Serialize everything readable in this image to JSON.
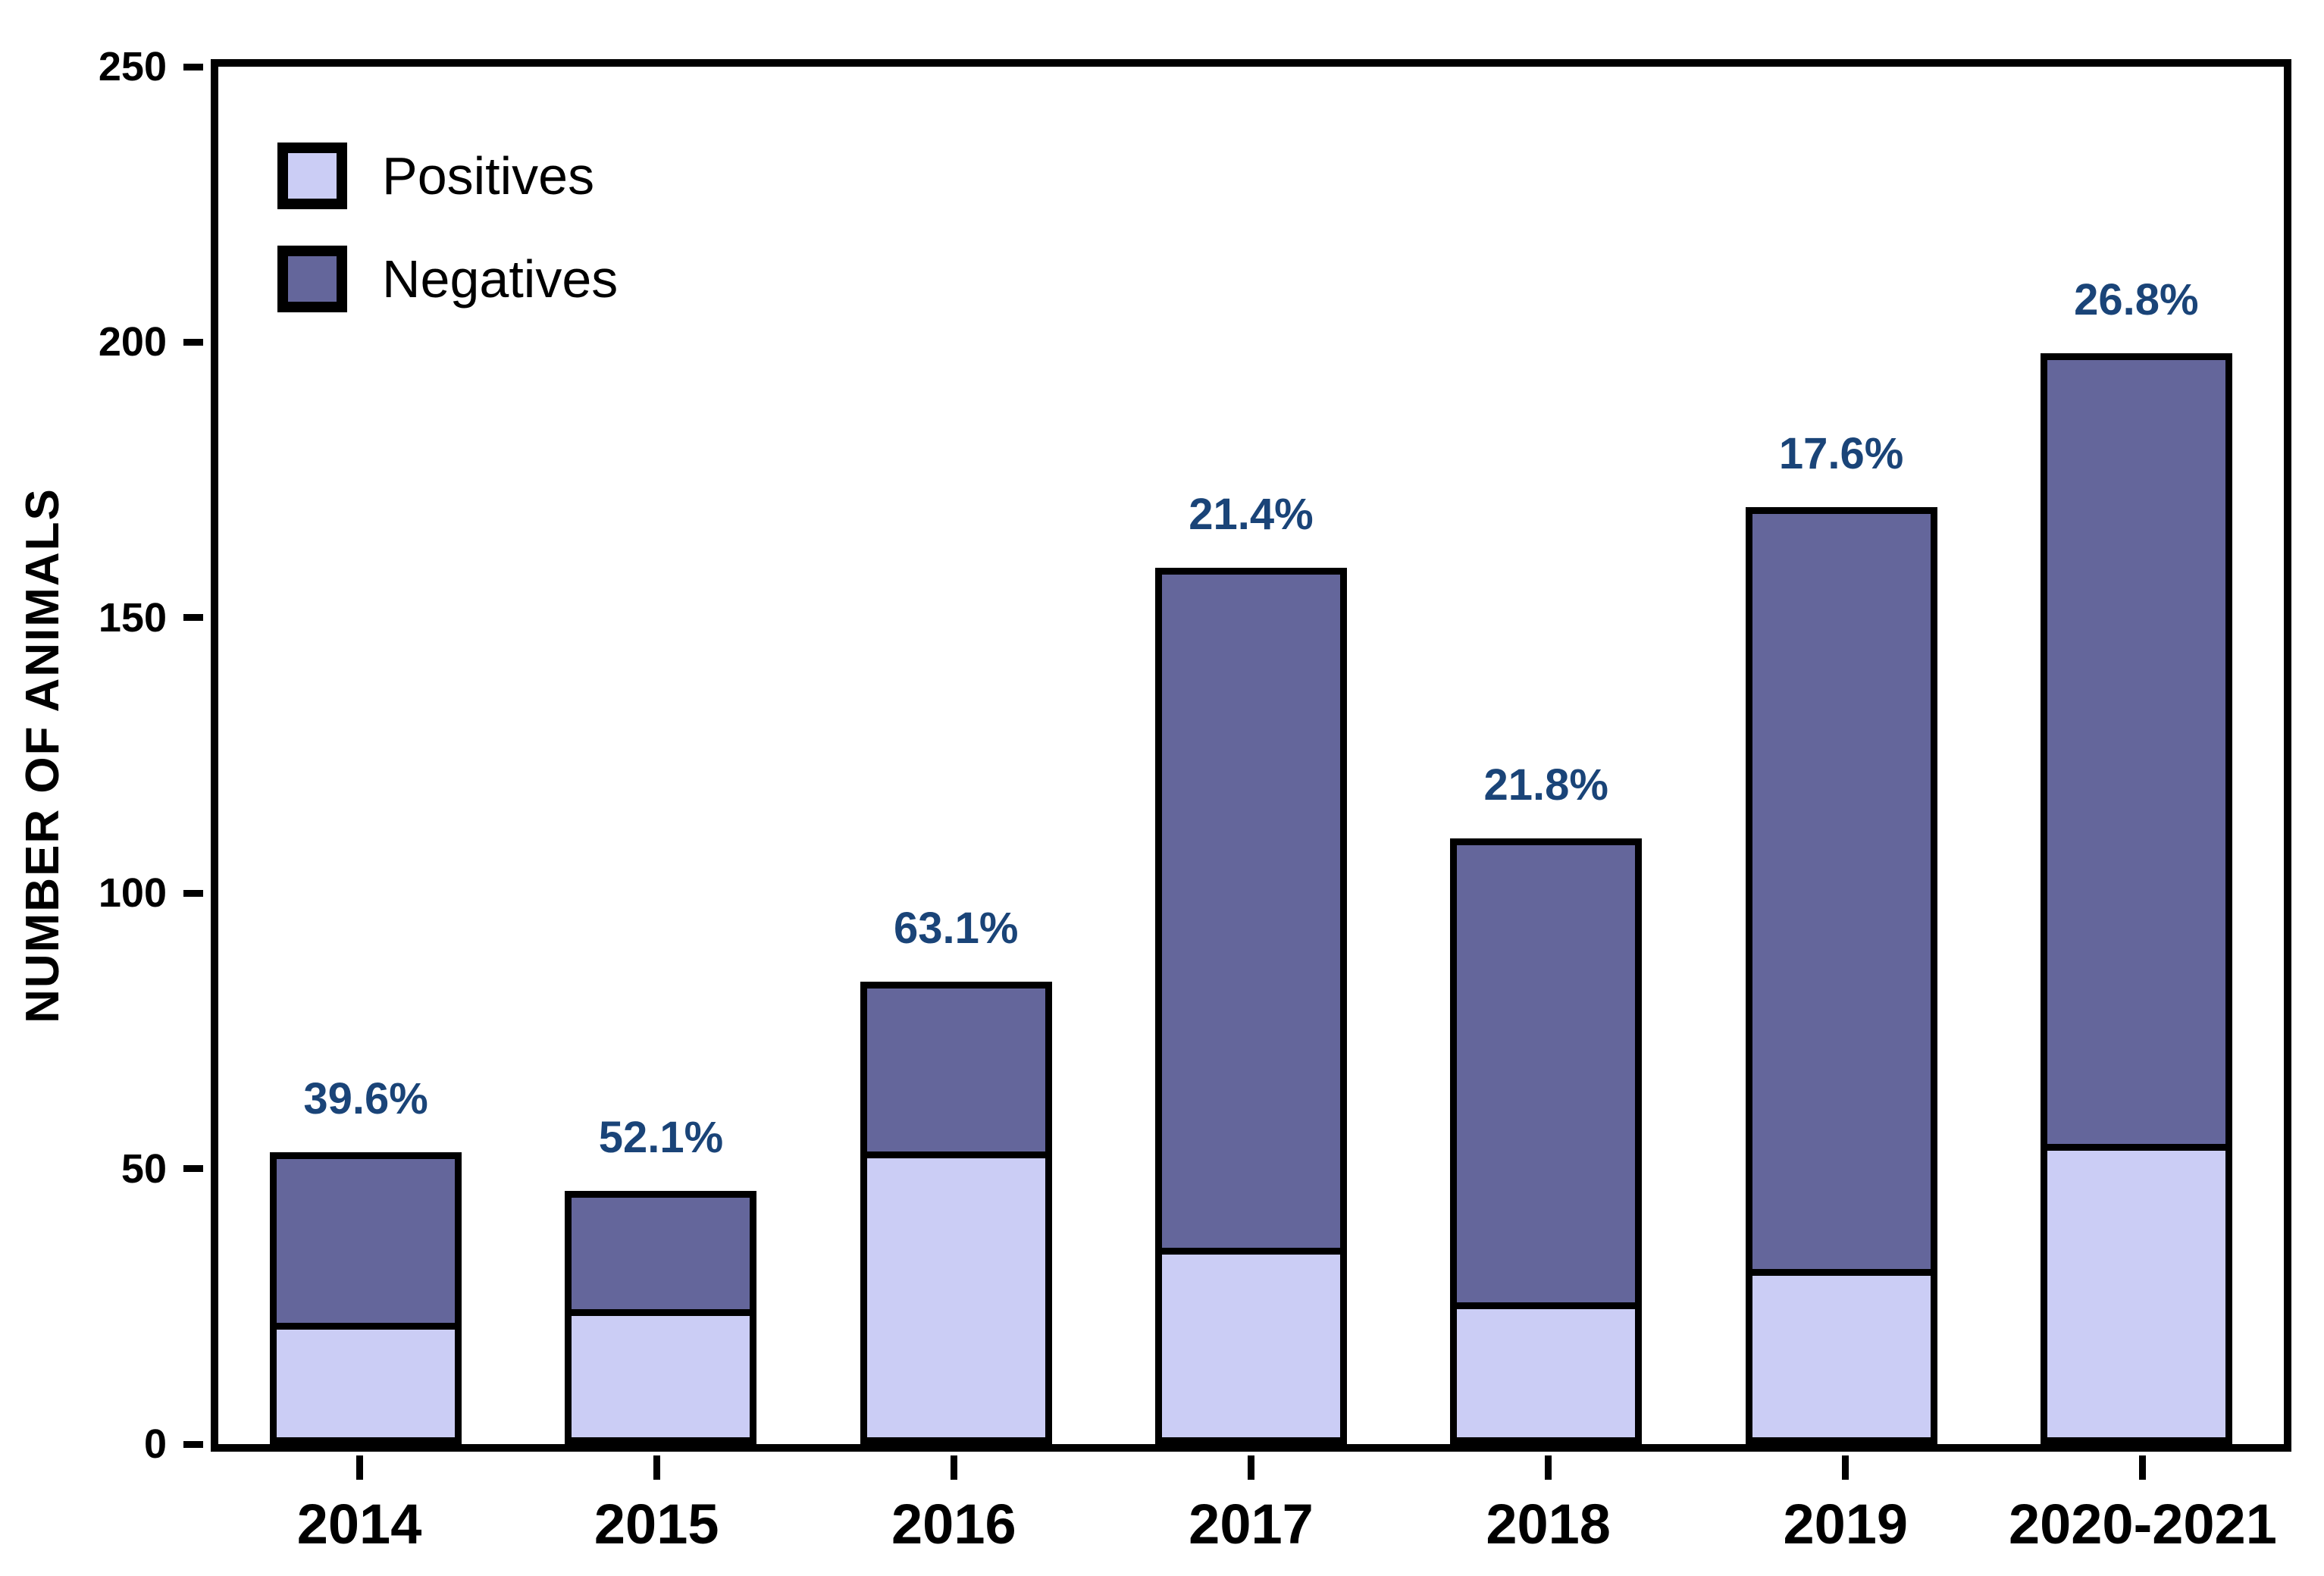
{
  "chart_data": {
    "type": "bar",
    "stacked": true,
    "title": "",
    "xlabel": "",
    "ylabel": "NUMBER OF ANIMALS",
    "ylim": [
      0,
      250
    ],
    "yticks": [
      0,
      50,
      100,
      150,
      200,
      250
    ],
    "grid": false,
    "frame": true,
    "legend_position": "top-left",
    "categories": [
      "2014",
      "2015",
      "2016",
      "2017",
      "2018",
      "2019",
      "2020-2021"
    ],
    "series": [
      {
        "name": "Positives",
        "color": "#cbcdf5",
        "values": [
          21,
          24,
          53,
          34,
          24,
          30,
          53
        ]
      },
      {
        "name": "Negatives",
        "color": "#64669b",
        "values": [
          32,
          22,
          31,
          125,
          86,
          140,
          145
        ]
      }
    ],
    "totals": [
      53,
      46,
      84,
      159,
      110,
      170,
      198
    ],
    "bar_labels": [
      "39.6%",
      "52.1%",
      "63.1%",
      "21.4%",
      "21.8%",
      "17.6%",
      "26.8%"
    ],
    "bar_label_color": "#1a4478"
  },
  "legend": {
    "items": [
      {
        "label": "Positives",
        "color": "#cbcdf5"
      },
      {
        "label": "Negatives",
        "color": "#64669b"
      }
    ]
  }
}
